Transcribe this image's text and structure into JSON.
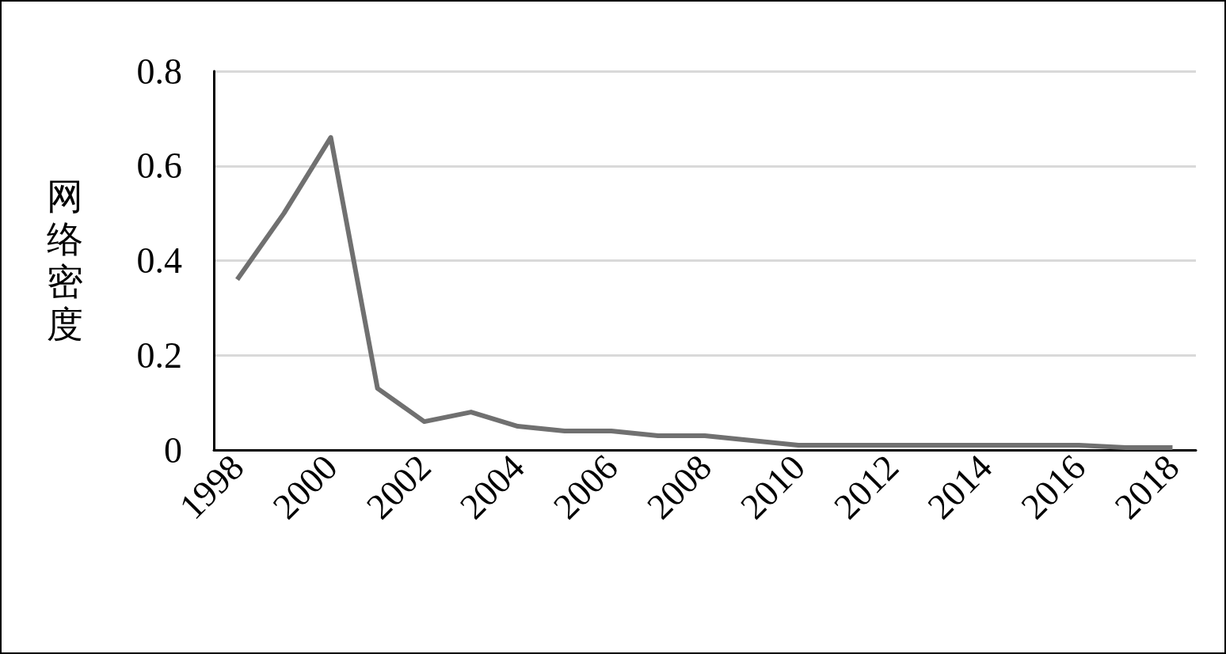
{
  "chart_data": {
    "type": "line",
    "ylabel": "网络密度",
    "categories": [
      "1998",
      null,
      "2000",
      null,
      "2002",
      null,
      "2004",
      null,
      "2006",
      null,
      "2008",
      null,
      "2010",
      null,
      "2012",
      null,
      "2014",
      null,
      "2016",
      null,
      "2018"
    ],
    "series": [
      {
        "color": "#707070",
        "values": [
          0.36,
          0.5,
          0.66,
          0.13,
          0.06,
          0.08,
          0.05,
          0.04,
          0.04,
          0.03,
          0.03,
          0.02,
          0.01,
          0.01,
          0.01,
          0.01,
          0.01,
          0.01,
          0.01,
          0.005,
          0.005
        ]
      }
    ],
    "ylim": [
      0,
      0.8
    ],
    "yticks": [
      0,
      0.2,
      0.4,
      0.6,
      0.8
    ],
    "grid": "y",
    "marker": "none",
    "line_style": "solid"
  }
}
